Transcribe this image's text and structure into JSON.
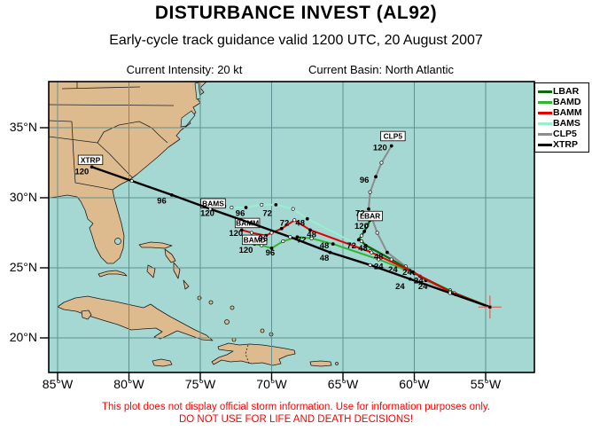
{
  "header": {
    "title": "DISTURBANCE INVEST (AL92)",
    "subtitle": "Early-cycle track guidance valid 1200 UTC, 20 August 2007",
    "intensity": "Current Intensity: 20 kt",
    "basin": "Current Basin: North Atlantic"
  },
  "footer": {
    "line1": "This plot does not display official storm information. Use for information purposes only.",
    "line2": "DO NOT USE FOR LIFE AND DEATH DECISIONS!",
    "color": "#ff0000"
  },
  "legend": {
    "items": [
      {
        "label": "LBAR",
        "color": "#0a6b0a"
      },
      {
        "label": "BAMD",
        "color": "#2db92d"
      },
      {
        "label": "BAMM",
        "color": "#e60000"
      },
      {
        "label": "BAMS",
        "color": "#97efd2"
      },
      {
        "label": "CLP5",
        "color": "#8c8c8c"
      },
      {
        "label": "XTRP",
        "color": "#000000"
      }
    ]
  },
  "axes": {
    "lon_ticks": [
      {
        "label": "85°W",
        "lon": -85
      },
      {
        "label": "80°W",
        "lon": -80
      },
      {
        "label": "75°W",
        "lon": -75
      },
      {
        "label": "70°W",
        "lon": -70
      },
      {
        "label": "65°W",
        "lon": -65
      },
      {
        "label": "60°W",
        "lon": -60
      },
      {
        "label": "55°W",
        "lon": -55
      }
    ],
    "lat_ticks": [
      {
        "label": "35°N",
        "lat": 35
      },
      {
        "label": "30°N",
        "lat": 30
      },
      {
        "label": "25°N",
        "lat": 25
      },
      {
        "label": "20°N",
        "lat": 20
      }
    ]
  },
  "map_colors": {
    "water": "#a5d8d2",
    "land": "#ddbb8f",
    "coast": "#1b1b1b",
    "grid": "#5e9191"
  },
  "chart_data": {
    "type": "track-map",
    "hour_step": 12,
    "start": {
      "lon": -54.7,
      "lat": 22.2,
      "marker_color": "#d96a5a"
    },
    "tracks": [
      {
        "id": "BAMS",
        "color": "#97efd2",
        "width": 2,
        "points": [
          [
            -54.7,
            22.2
          ],
          [
            -57.5,
            23.4
          ],
          [
            -60.3,
            24.8
          ],
          [
            -63.1,
            26.2
          ],
          [
            -67.5,
            28.5
          ],
          [
            -68.5,
            29.2
          ],
          [
            -69.7,
            29.5
          ],
          [
            -70.7,
            29.5
          ],
          [
            -71.8,
            29.3
          ],
          [
            -72.8,
            29.3
          ],
          [
            -73.3,
            29.4
          ]
        ],
        "hour_labels": [
          {
            "h": "24",
            "lon": -62.5,
            "lat": 25.1
          },
          {
            "h": "48",
            "lon": -68.0,
            "lat": 28.2
          },
          {
            "h": "72",
            "lon": -70.3,
            "lat": 28.9
          },
          {
            "h": "96",
            "lon": -72.2,
            "lat": 28.9
          },
          {
            "h": "120",
            "lon": -74.5,
            "lat": 28.9
          }
        ],
        "name_label": {
          "lon": -74.1,
          "lat": 29.6
        }
      },
      {
        "id": "CLP5",
        "color": "#8c8c8c",
        "width": 2,
        "points": [
          [
            -54.7,
            22.2
          ],
          [
            -57.1,
            23.1
          ],
          [
            -59.2,
            24.1
          ],
          [
            -60.6,
            25.1
          ],
          [
            -61.9,
            26.1
          ],
          [
            -62.6,
            27.5
          ],
          [
            -63.2,
            29.2
          ],
          [
            -63.1,
            30.4
          ],
          [
            -62.7,
            31.5
          ],
          [
            -62.3,
            32.5
          ],
          [
            -61.6,
            33.7
          ]
        ],
        "hour_labels": [
          {
            "h": "24",
            "lon": -59.4,
            "lat": 23.7
          },
          {
            "h": "48",
            "lon": -62.5,
            "lat": 25.8
          },
          {
            "h": "72",
            "lon": -63.8,
            "lat": 28.9
          },
          {
            "h": "96",
            "lon": -63.5,
            "lat": 31.3
          },
          {
            "h": "120",
            "lon": -62.4,
            "lat": 33.6
          }
        ],
        "name_label": {
          "lon": -61.5,
          "lat": 34.4
        }
      },
      {
        "id": "BAMD",
        "color": "#2db92d",
        "width": 2,
        "points": [
          [
            -54.7,
            22.2
          ],
          [
            -57.2,
            23.2
          ],
          [
            -60.0,
            24.6
          ],
          [
            -62.5,
            25.6
          ],
          [
            -65.7,
            26.7
          ],
          [
            -67.2,
            27.1
          ],
          [
            -68.2,
            27.2
          ],
          [
            -69.2,
            26.9
          ],
          [
            -70.0,
            26.4
          ],
          [
            -70.7,
            26.6
          ],
          [
            -71.2,
            26.7
          ]
        ],
        "hour_labels": [
          {
            "h": "24",
            "lon": -60.5,
            "lat": 24.7
          },
          {
            "h": "48",
            "lon": -66.3,
            "lat": 26.6
          },
          {
            "h": "72",
            "lon": -67.9,
            "lat": 27.0
          },
          {
            "h": "96",
            "lon": -70.1,
            "lat": 26.1
          },
          {
            "h": "120",
            "lon": -71.8,
            "lat": 26.3
          }
        ],
        "name_label": {
          "lon": -71.2,
          "lat": 27.0
        }
      },
      {
        "id": "LBAR",
        "color": "#0a6b0a",
        "width": 2.4,
        "points": [
          [
            -54.7,
            22.2
          ],
          [
            -57.2,
            23.2
          ],
          [
            -59.6,
            24.4
          ],
          [
            -61.6,
            25.6
          ],
          [
            -63.4,
            26.6
          ],
          [
            -63.7,
            26.9
          ],
          [
            -63.9,
            27.0
          ],
          [
            -63.7,
            27.3
          ],
          [
            -63.5,
            27.6
          ],
          [
            -63.3,
            28.0
          ],
          [
            -63.1,
            28.4
          ]
        ],
        "hour_labels": [
          {
            "h": "24",
            "lon": -59.7,
            "lat": 24.1
          },
          {
            "h": "48",
            "lon": -63.6,
            "lat": 26.4
          },
          {
            "h": "72",
            "lon": -64.4,
            "lat": 26.6
          },
          {
            "h": "120",
            "lon": -63.7,
            "lat": 28.0
          }
        ],
        "name_label": {
          "lon": -63.1,
          "lat": 28.7
        }
      },
      {
        "id": "BAMM",
        "color": "#e60000",
        "width": 2,
        "points": [
          [
            -54.7,
            22.2
          ],
          [
            -57.5,
            23.3
          ],
          [
            -60.1,
            24.7
          ],
          [
            -63.0,
            26.1
          ],
          [
            -67.3,
            27.7
          ],
          [
            -68.4,
            28.4
          ],
          [
            -69.3,
            27.8
          ],
          [
            -70.0,
            27.5
          ],
          [
            -70.4,
            27.3
          ],
          [
            -71.4,
            27.5
          ],
          [
            -72.1,
            27.7
          ]
        ],
        "hour_labels": [
          {
            "h": "24",
            "lon": -61.5,
            "lat": 24.9
          },
          {
            "h": "48",
            "lon": -67.2,
            "lat": 27.4
          },
          {
            "h": "72",
            "lon": -69.1,
            "lat": 28.2
          },
          {
            "h": "96",
            "lon": -70.6,
            "lat": 27.1
          },
          {
            "h": "120",
            "lon": -72.5,
            "lat": 27.5
          }
        ],
        "name_label": {
          "lon": -71.7,
          "lat": 28.2
        }
      },
      {
        "id": "XTRP",
        "color": "#000000",
        "width": 2.4,
        "points": [
          [
            -54.7,
            22.2
          ],
          [
            -57.5,
            23.2
          ],
          [
            -60.3,
            24.2
          ],
          [
            -63.1,
            25.2
          ],
          [
            -65.9,
            26.1
          ],
          [
            -68.7,
            27.2
          ],
          [
            -71.5,
            28.2
          ],
          [
            -74.3,
            29.2
          ],
          [
            -77.0,
            30.2
          ],
          [
            -79.8,
            31.2
          ],
          [
            -82.6,
            32.2
          ]
        ],
        "hour_labels": [
          {
            "h": "24",
            "lon": -61.0,
            "lat": 23.7
          },
          {
            "h": "48",
            "lon": -66.3,
            "lat": 25.7
          },
          {
            "h": "96",
            "lon": -77.7,
            "lat": 29.8
          },
          {
            "h": "120",
            "lon": -83.3,
            "lat": 31.9
          }
        ],
        "name_label": {
          "lon": -82.7,
          "lat": 32.7
        }
      }
    ]
  }
}
